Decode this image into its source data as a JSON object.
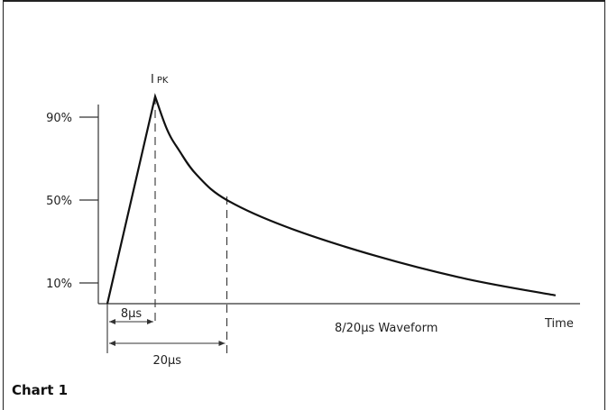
{
  "caption": "Chart 1",
  "chart_data": {
    "type": "line",
    "title": "8/20µs Waveform",
    "xlabel": "Time",
    "ylabel": "",
    "peak_label": "I",
    "peak_subscript": "PK",
    "y_ticks": [
      {
        "label": "90%",
        "value": 90
      },
      {
        "label": "50%",
        "value": 50
      },
      {
        "label": "10%",
        "value": 10
      }
    ],
    "x_annotations": [
      {
        "label": "8µs",
        "from": 0,
        "to": 8
      },
      {
        "label": "20µs",
        "from": 0,
        "to": 20
      }
    ],
    "series": [
      {
        "x": [
          0,
          8,
          10,
          12,
          15,
          20,
          30,
          45,
          60,
          75
        ],
        "y": [
          0,
          100,
          84,
          74,
          62,
          50,
          37,
          23,
          12,
          4
        ]
      }
    ],
    "xlim": [
      -2,
      87
    ],
    "ylim": [
      0,
      110
    ]
  }
}
